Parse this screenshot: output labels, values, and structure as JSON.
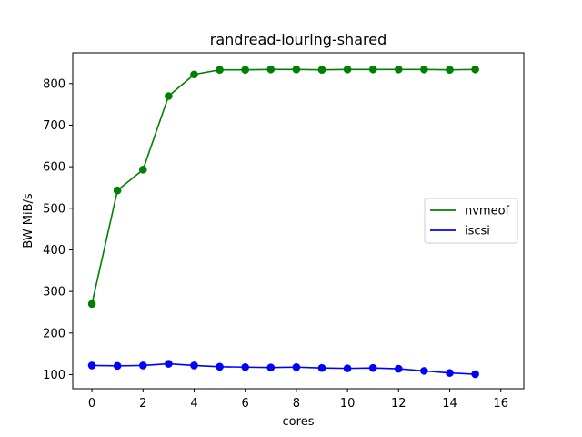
{
  "chart_data": {
    "type": "line",
    "title": "randread-iouring-shared",
    "xlabel": "cores",
    "ylabel": "BW MiB/s",
    "xlim": [
      -0.75,
      16.9
    ],
    "ylim": [
      66,
      874
    ],
    "xticks": [
      0,
      2,
      4,
      6,
      8,
      10,
      12,
      14,
      16
    ],
    "yticks": [
      100,
      200,
      300,
      400,
      500,
      600,
      700,
      800
    ],
    "grid": false,
    "legend_position": "center-right",
    "x": [
      0,
      1,
      2,
      3,
      4,
      5,
      6,
      7,
      8,
      9,
      10,
      11,
      12,
      13,
      14,
      15
    ],
    "series": [
      {
        "name": "nvmeof",
        "color": "#008000",
        "values": [
          270,
          543,
          593,
          770,
          822,
          833,
          833,
          834,
          834,
          833,
          834,
          834,
          834,
          834,
          833,
          834
        ]
      },
      {
        "name": "iscsi",
        "color": "#0000ff",
        "values": [
          122,
          121,
          122,
          126,
          122,
          119,
          118,
          117,
          118,
          116,
          115,
          116,
          114,
          109,
          104,
          101
        ]
      }
    ]
  }
}
